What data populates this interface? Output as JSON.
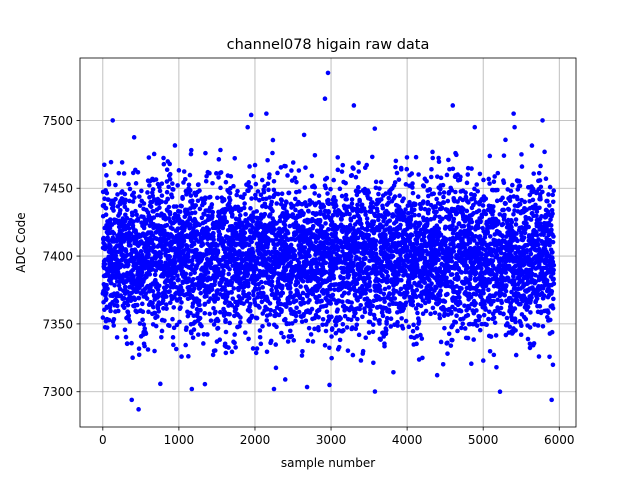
{
  "chart_data": {
    "type": "scatter",
    "title": "channel078 higain raw data",
    "xlabel": "sample number",
    "ylabel": "ADC Code",
    "xlim": [
      -300,
      6220
    ],
    "ylim": [
      7274,
      7546
    ],
    "xticks": [
      0,
      1000,
      2000,
      3000,
      4000,
      5000,
      6000
    ],
    "yticks": [
      7300,
      7350,
      7400,
      7450,
      7500
    ],
    "grid": true,
    "marker_color": "#0000ff",
    "series": [
      {
        "n_points": 5930,
        "mean": 7400,
        "std": 28,
        "x_range": [
          0,
          5929
        ],
        "notable_points": [
          {
            "x": 2960,
            "y": 7535
          },
          {
            "x": 2920,
            "y": 7516
          },
          {
            "x": 3300,
            "y": 7511
          },
          {
            "x": 4600,
            "y": 7511
          },
          {
            "x": 5400,
            "y": 7505
          },
          {
            "x": 1950,
            "y": 7504
          },
          {
            "x": 2150,
            "y": 7505
          },
          {
            "x": 130,
            "y": 7500
          },
          {
            "x": 5780,
            "y": 7500
          },
          {
            "x": 380,
            "y": 7294
          },
          {
            "x": 470,
            "y": 7287
          },
          {
            "x": 5900,
            "y": 7294
          },
          {
            "x": 1170,
            "y": 7302
          },
          {
            "x": 2250,
            "y": 7302
          },
          {
            "x": 2980,
            "y": 7305
          }
        ]
      }
    ]
  }
}
